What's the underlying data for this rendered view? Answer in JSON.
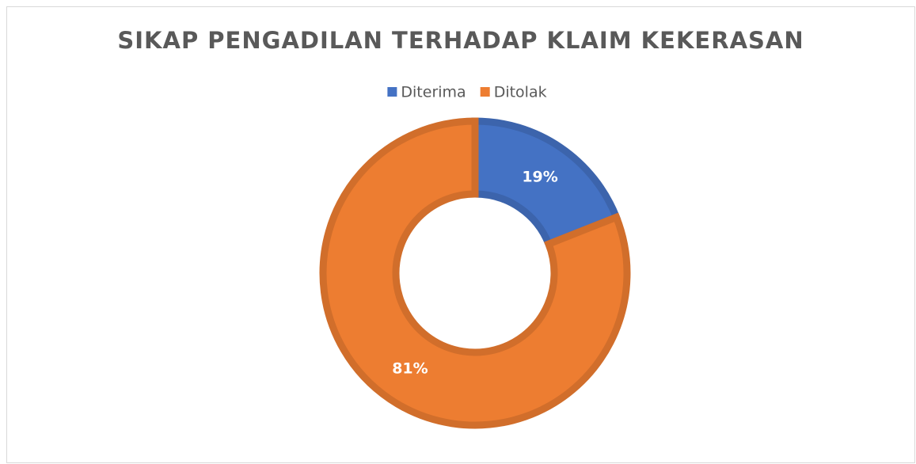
{
  "chart_data": {
    "type": "donut",
    "title": "SIKAP PENGADILAN TERHADAP KLAIM KEKERASAN",
    "categories": [
      "Diterima",
      "Ditolak"
    ],
    "values": [
      19,
      81
    ],
    "value_labels": [
      "19%",
      "81%"
    ],
    "colors": [
      "#4472c4",
      "#ed7d31"
    ],
    "legend": "top"
  }
}
